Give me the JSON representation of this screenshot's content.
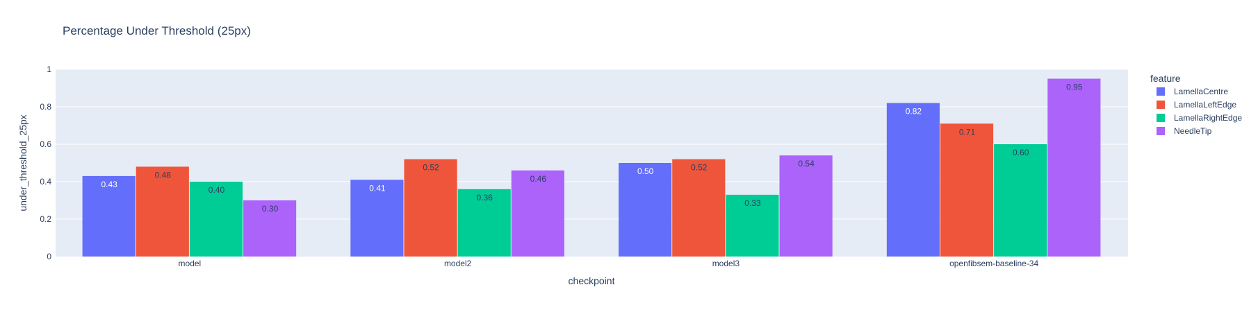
{
  "chart_data": {
    "type": "bar",
    "title": "Percentage Under Threshold (25px)",
    "xlabel": "checkpoint",
    "ylabel": "under_threshold_25px",
    "ylim": [
      0,
      1
    ],
    "yticks": [
      0,
      0.2,
      0.4,
      0.6,
      0.8,
      1
    ],
    "ytick_labels": [
      "0",
      "0.2",
      "0.4",
      "0.6",
      "0.8",
      "1"
    ],
    "categories": [
      "model",
      "model2",
      "model3",
      "openfibsem-baseline-34"
    ],
    "legend_title": "feature",
    "legend_position": "right",
    "grid": true,
    "series": [
      {
        "name": "LamellaCentre",
        "color": "#636efa",
        "label_color": "#ffffff",
        "values": [
          0.43,
          0.41,
          0.5,
          0.82
        ]
      },
      {
        "name": "LamellaLeftEdge",
        "color": "#ef553b",
        "label_color": "#2a3f5f",
        "values": [
          0.48,
          0.52,
          0.52,
          0.71
        ]
      },
      {
        "name": "LamellaRightEdge",
        "color": "#00cc96",
        "label_color": "#2a3f5f",
        "values": [
          0.4,
          0.36,
          0.33,
          0.6
        ]
      },
      {
        "name": "NeedleTip",
        "color": "#ab63fa",
        "label_color": "#2a3f5f",
        "values": [
          0.3,
          0.46,
          0.54,
          0.95
        ]
      }
    ],
    "colors": {
      "plot_bg": "#e5ecf6",
      "grid": "#ffffff",
      "text": "#2a3f5f"
    }
  }
}
